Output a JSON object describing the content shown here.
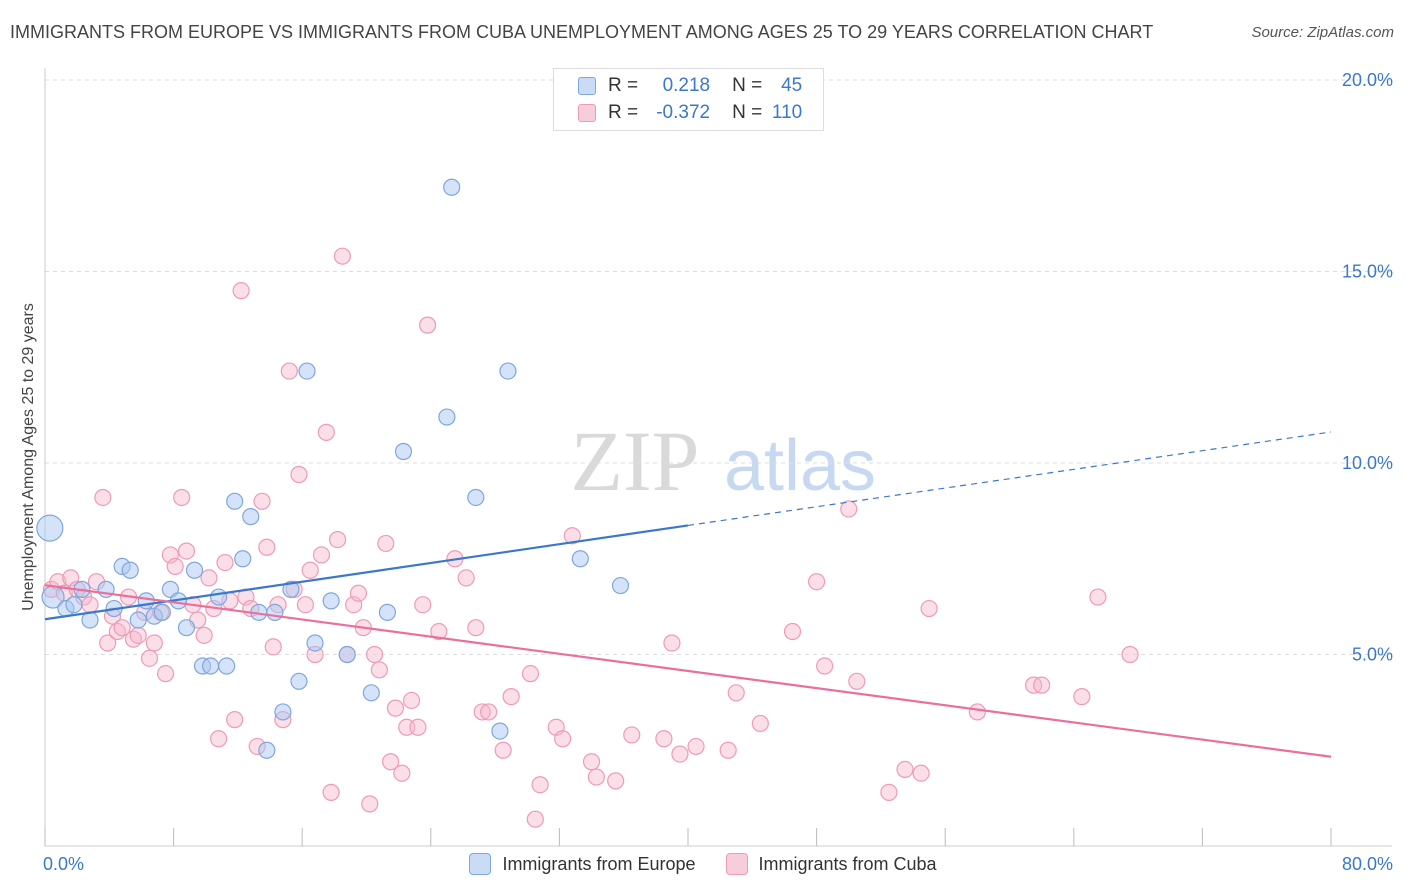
{
  "title": "IMMIGRANTS FROM EUROPE VS IMMIGRANTS FROM CUBA UNEMPLOYMENT AMONG AGES 25 TO 29 YEARS CORRELATION CHART",
  "source": "Source: ZipAtlas.com",
  "watermark": {
    "zip": "ZIP",
    "atlas": "atlas"
  },
  "legend": {
    "europe": {
      "r_label": "R =",
      "r_value": "0.218",
      "n_label": "N =",
      "n_value": "45"
    },
    "cuba": {
      "r_label": "R =",
      "r_value": "-0.372",
      "n_label": "N =",
      "n_value": "110"
    }
  },
  "colors": {
    "europe_fill": "#a9c7f0",
    "europe_stroke": "#7ea7de",
    "europe_line": "#3a78c9",
    "cuba_fill": "#f5b8cc",
    "cuba_stroke": "#ef9ab6",
    "cuba_line": "#e8709b",
    "grid": "#dddddd",
    "tick_label": "#3a78c9"
  },
  "chart_data": {
    "type": "scatter",
    "title": "IMMIGRANTS FROM EUROPE VS IMMIGRANTS FROM CUBA UNEMPLOYMENT AMONG AGES 25 TO 29 YEARS CORRELATION CHART",
    "xlabel": "",
    "ylabel": "Unemployment Among Ages 25 to 29 years",
    "xlim": [
      0,
      80
    ],
    "ylim": [
      0,
      20
    ],
    "x_tick_labels": [
      "0.0%",
      "80.0%"
    ],
    "y_ticks": [
      5,
      10,
      15,
      20
    ],
    "y_tick_labels": [
      "5.0%",
      "10.0%",
      "15.0%",
      "20.0%"
    ],
    "grid": true,
    "legend_position": "top-center",
    "series": [
      {
        "name": "Immigrants from Europe",
        "trend": {
          "x": [
            0,
            40,
            80
          ],
          "y": [
            5.92,
            8.37,
            10.81
          ],
          "dashed_after_x": 40
        },
        "points": [
          [
            0.3,
            8.3
          ],
          [
            0.5,
            6.5
          ],
          [
            1.3,
            6.2
          ],
          [
            1.8,
            6.3
          ],
          [
            2.3,
            6.7
          ],
          [
            2.8,
            5.9
          ],
          [
            3.8,
            6.7
          ],
          [
            4.3,
            6.2
          ],
          [
            4.8,
            7.3
          ],
          [
            5.3,
            7.2
          ],
          [
            5.8,
            5.9
          ],
          [
            6.3,
            6.4
          ],
          [
            6.8,
            6.0
          ],
          [
            7.3,
            6.1
          ],
          [
            7.8,
            6.7
          ],
          [
            8.3,
            6.4
          ],
          [
            8.8,
            5.7
          ],
          [
            9.3,
            7.2
          ],
          [
            9.8,
            4.7
          ],
          [
            10.3,
            4.7
          ],
          [
            10.8,
            6.5
          ],
          [
            11.3,
            4.7
          ],
          [
            11.8,
            9.0
          ],
          [
            12.3,
            7.5
          ],
          [
            12.8,
            8.6
          ],
          [
            13.3,
            6.1
          ],
          [
            13.8,
            2.5
          ],
          [
            14.3,
            6.1
          ],
          [
            14.8,
            3.5
          ],
          [
            15.3,
            6.7
          ],
          [
            15.8,
            4.3
          ],
          [
            16.3,
            12.4
          ],
          [
            16.8,
            5.3
          ],
          [
            17.8,
            6.4
          ],
          [
            18.8,
            5.0
          ],
          [
            20.3,
            4.0
          ],
          [
            21.3,
            6.1
          ],
          [
            22.3,
            10.3
          ],
          [
            25.3,
            17.2
          ],
          [
            26.8,
            9.1
          ],
          [
            28.3,
            3.0
          ],
          [
            28.8,
            12.4
          ],
          [
            33.3,
            7.5
          ],
          [
            35.8,
            6.8
          ],
          [
            25.0,
            11.2
          ]
        ]
      },
      {
        "name": "Immigrants from Cuba",
        "trend": {
          "x": [
            0,
            80
          ],
          "y": [
            6.81,
            2.33
          ]
        },
        "points": [
          [
            0.4,
            6.7
          ],
          [
            0.8,
            6.9
          ],
          [
            1.2,
            6.6
          ],
          [
            1.6,
            7.0
          ],
          [
            2.0,
            6.7
          ],
          [
            2.4,
            6.5
          ],
          [
            2.8,
            6.3
          ],
          [
            3.2,
            6.9
          ],
          [
            3.6,
            9.1
          ],
          [
            3.9,
            5.3
          ],
          [
            4.2,
            6.0
          ],
          [
            4.5,
            5.6
          ],
          [
            4.8,
            5.7
          ],
          [
            5.2,
            6.5
          ],
          [
            5.5,
            5.4
          ],
          [
            5.8,
            5.5
          ],
          [
            6.2,
            6.1
          ],
          [
            6.5,
            4.9
          ],
          [
            6.8,
            5.3
          ],
          [
            7.2,
            6.1
          ],
          [
            7.5,
            4.5
          ],
          [
            7.8,
            7.6
          ],
          [
            8.1,
            7.3
          ],
          [
            8.5,
            9.1
          ],
          [
            8.8,
            7.7
          ],
          [
            9.2,
            6.3
          ],
          [
            9.5,
            5.9
          ],
          [
            9.9,
            5.5
          ],
          [
            10.2,
            7.0
          ],
          [
            10.5,
            6.2
          ],
          [
            10.8,
            2.8
          ],
          [
            11.2,
            7.4
          ],
          [
            11.5,
            6.4
          ],
          [
            11.8,
            3.3
          ],
          [
            12.2,
            14.5
          ],
          [
            12.5,
            6.5
          ],
          [
            12.8,
            6.2
          ],
          [
            13.2,
            2.6
          ],
          [
            13.5,
            9.0
          ],
          [
            13.8,
            7.8
          ],
          [
            14.2,
            5.2
          ],
          [
            14.5,
            6.3
          ],
          [
            14.8,
            3.3
          ],
          [
            15.2,
            12.4
          ],
          [
            15.5,
            6.7
          ],
          [
            15.8,
            9.7
          ],
          [
            16.2,
            6.3
          ],
          [
            16.5,
            7.2
          ],
          [
            16.8,
            5.0
          ],
          [
            17.2,
            7.6
          ],
          [
            17.5,
            10.8
          ],
          [
            17.8,
            1.4
          ],
          [
            18.2,
            8.0
          ],
          [
            18.5,
            15.4
          ],
          [
            18.8,
            5.0
          ],
          [
            19.2,
            6.3
          ],
          [
            19.5,
            6.6
          ],
          [
            19.8,
            5.7
          ],
          [
            20.2,
            1.1
          ],
          [
            20.5,
            5.0
          ],
          [
            20.8,
            4.6
          ],
          [
            21.2,
            7.9
          ],
          [
            21.5,
            2.2
          ],
          [
            21.8,
            3.6
          ],
          [
            22.2,
            1.9
          ],
          [
            22.5,
            3.1
          ],
          [
            22.8,
            3.8
          ],
          [
            23.2,
            3.1
          ],
          [
            23.5,
            6.3
          ],
          [
            23.8,
            13.6
          ],
          [
            24.5,
            5.6
          ],
          [
            25.5,
            7.5
          ],
          [
            26.2,
            7.0
          ],
          [
            26.8,
            5.7
          ],
          [
            27.2,
            3.5
          ],
          [
            27.6,
            3.5
          ],
          [
            28.5,
            2.5
          ],
          [
            29.0,
            3.9
          ],
          [
            30.2,
            4.5
          ],
          [
            30.5,
            0.7
          ],
          [
            30.8,
            1.6
          ],
          [
            31.8,
            3.1
          ],
          [
            32.8,
            8.1
          ],
          [
            32.2,
            2.8
          ],
          [
            34.0,
            2.2
          ],
          [
            34.3,
            1.8
          ],
          [
            35.5,
            1.7
          ],
          [
            36.5,
            2.9
          ],
          [
            38.5,
            2.8
          ],
          [
            39.0,
            5.3
          ],
          [
            39.5,
            2.4
          ],
          [
            40.5,
            2.6
          ],
          [
            42.5,
            2.5
          ],
          [
            43.0,
            4.0
          ],
          [
            44.5,
            3.2
          ],
          [
            46.5,
            5.6
          ],
          [
            48.0,
            6.9
          ],
          [
            48.5,
            4.7
          ],
          [
            50.0,
            8.8
          ],
          [
            50.5,
            4.3
          ],
          [
            52.5,
            1.4
          ],
          [
            53.5,
            2.0
          ],
          [
            54.5,
            1.9
          ],
          [
            55.0,
            6.2
          ],
          [
            58.0,
            3.5
          ],
          [
            61.5,
            4.2
          ],
          [
            64.5,
            3.9
          ],
          [
            65.5,
            6.5
          ],
          [
            67.5,
            5.0
          ],
          [
            62.0,
            4.2
          ]
        ]
      }
    ]
  },
  "bottom_legend": {
    "europe": "Immigrants from Europe",
    "cuba": "Immigrants from Cuba"
  }
}
